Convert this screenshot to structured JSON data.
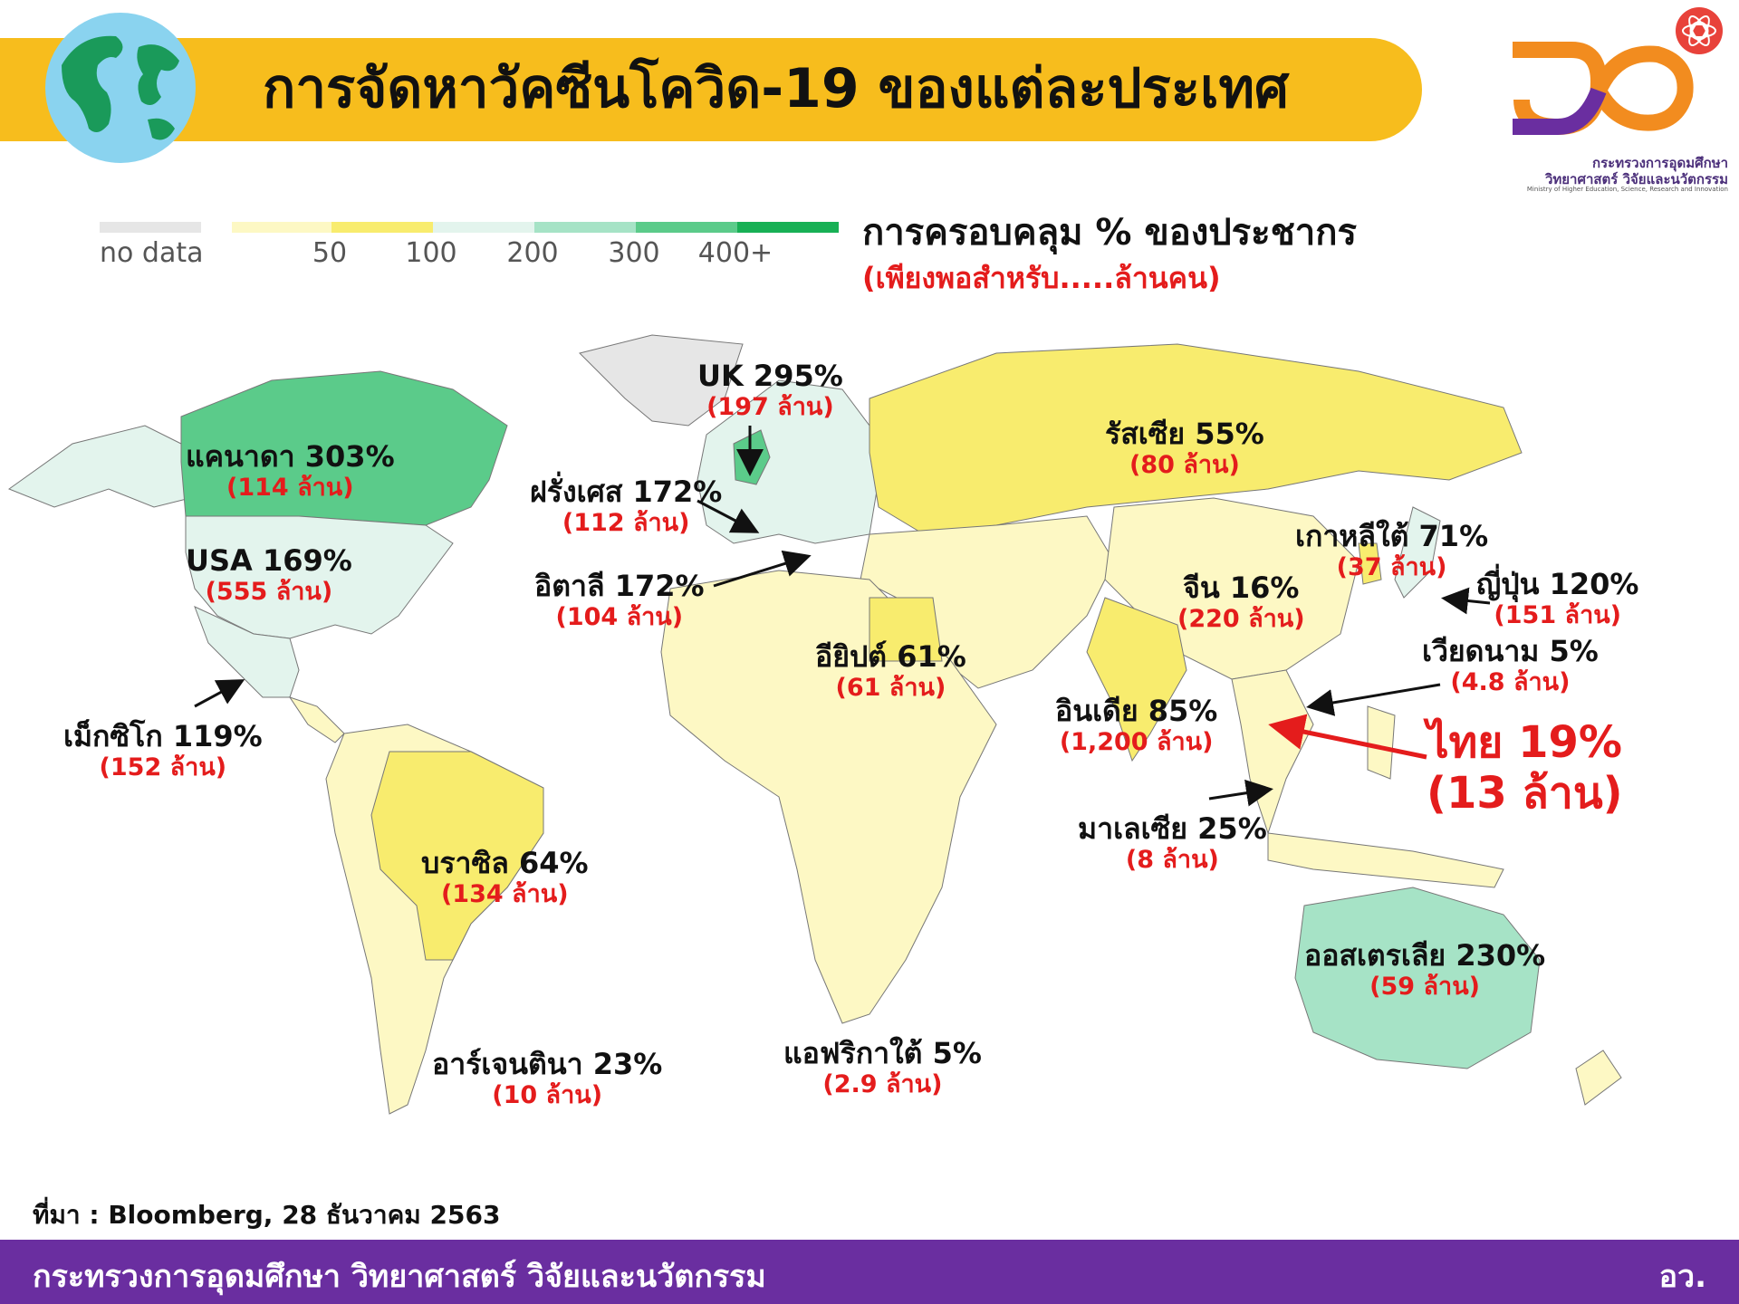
{
  "header": {
    "title": "การจัดหาวัคซีนโควิด-19 ของแต่ละประเทศ"
  },
  "logo": {
    "line1": "กระทรวงการอุดมศึกษา",
    "line2": "วิทยาศาสตร์ วิจัยและนวัตกรรม",
    "line3": "Ministry of Higher Education, Science, Research and Innovation",
    "color_orange": "#f28c1f",
    "color_purple": "#6a2ea0"
  },
  "legend": {
    "title": "การครอบคลุม % ของประชากร",
    "subtitle": "(เพียงพอสำหรับ.....ล้านคน)",
    "no_data_label": "no data",
    "no_data_color": "#e6e6e6",
    "bins": [
      {
        "label": "50",
        "color": "#fdf8c4"
      },
      {
        "label": "100",
        "color": "#f8ec6e"
      },
      {
        "label": "200",
        "color": "#e3f4ed"
      },
      {
        "label": "300",
        "color": "#a6e3c6"
      },
      {
        "label": "400+",
        "color": "#5bcb8a"
      },
      {
        "label": "",
        "color": "#18b055"
      }
    ]
  },
  "countries": [
    {
      "name": "UK 295%",
      "value": "(197 ล้าน)"
    },
    {
      "name": "แคนาดา 303%",
      "value": "(114 ล้าน)"
    },
    {
      "name": "ฝรั่งเศส 172%",
      "value": "(112 ล้าน)"
    },
    {
      "name": "รัสเซีย 55%",
      "value": "(80 ล้าน)"
    },
    {
      "name": "USA 169%",
      "value": "(555 ล้าน)"
    },
    {
      "name": "อิตาลี 172%",
      "value": "(104 ล้าน)"
    },
    {
      "name": "เกาหลีใต้ 71%",
      "value": "(37 ล้าน)"
    },
    {
      "name": "จีน 16%",
      "value": "(220 ล้าน)"
    },
    {
      "name": "ญี่ปุ่น 120%",
      "value": "(151 ล้าน)"
    },
    {
      "name": "อียิปต์ 61%",
      "value": "(61 ล้าน)"
    },
    {
      "name": "เวียดนาม 5%",
      "value": "(4.8 ล้าน)"
    },
    {
      "name": "อินเดีย 85%",
      "value": "(1,200 ล้าน)"
    },
    {
      "name": "เม็กซิโก 119%",
      "value": "(152 ล้าน)"
    },
    {
      "name": "ไทย 19%",
      "value": "(13 ล้าน)"
    },
    {
      "name": "มาเลเซีย 25%",
      "value": "(8 ล้าน)"
    },
    {
      "name": "บราซิล 64%",
      "value": "(134 ล้าน)"
    },
    {
      "name": "ออสเตรเลีย 230%",
      "value": "(59 ล้าน)"
    },
    {
      "name": "แอฟริกาใต้ 5%",
      "value": "(2.9 ล้าน)"
    },
    {
      "name": "อาร์เจนตินา 23%",
      "value": "(10 ล้าน)"
    }
  ],
  "source": "ที่มา : Bloomberg, 28 ธันวาคม 2563",
  "footer": {
    "ministry": "กระทรวงการอุดมศึกษา วิทยาศาสตร์ วิจัยและนวัตกรรม",
    "abbr": "อว."
  }
}
